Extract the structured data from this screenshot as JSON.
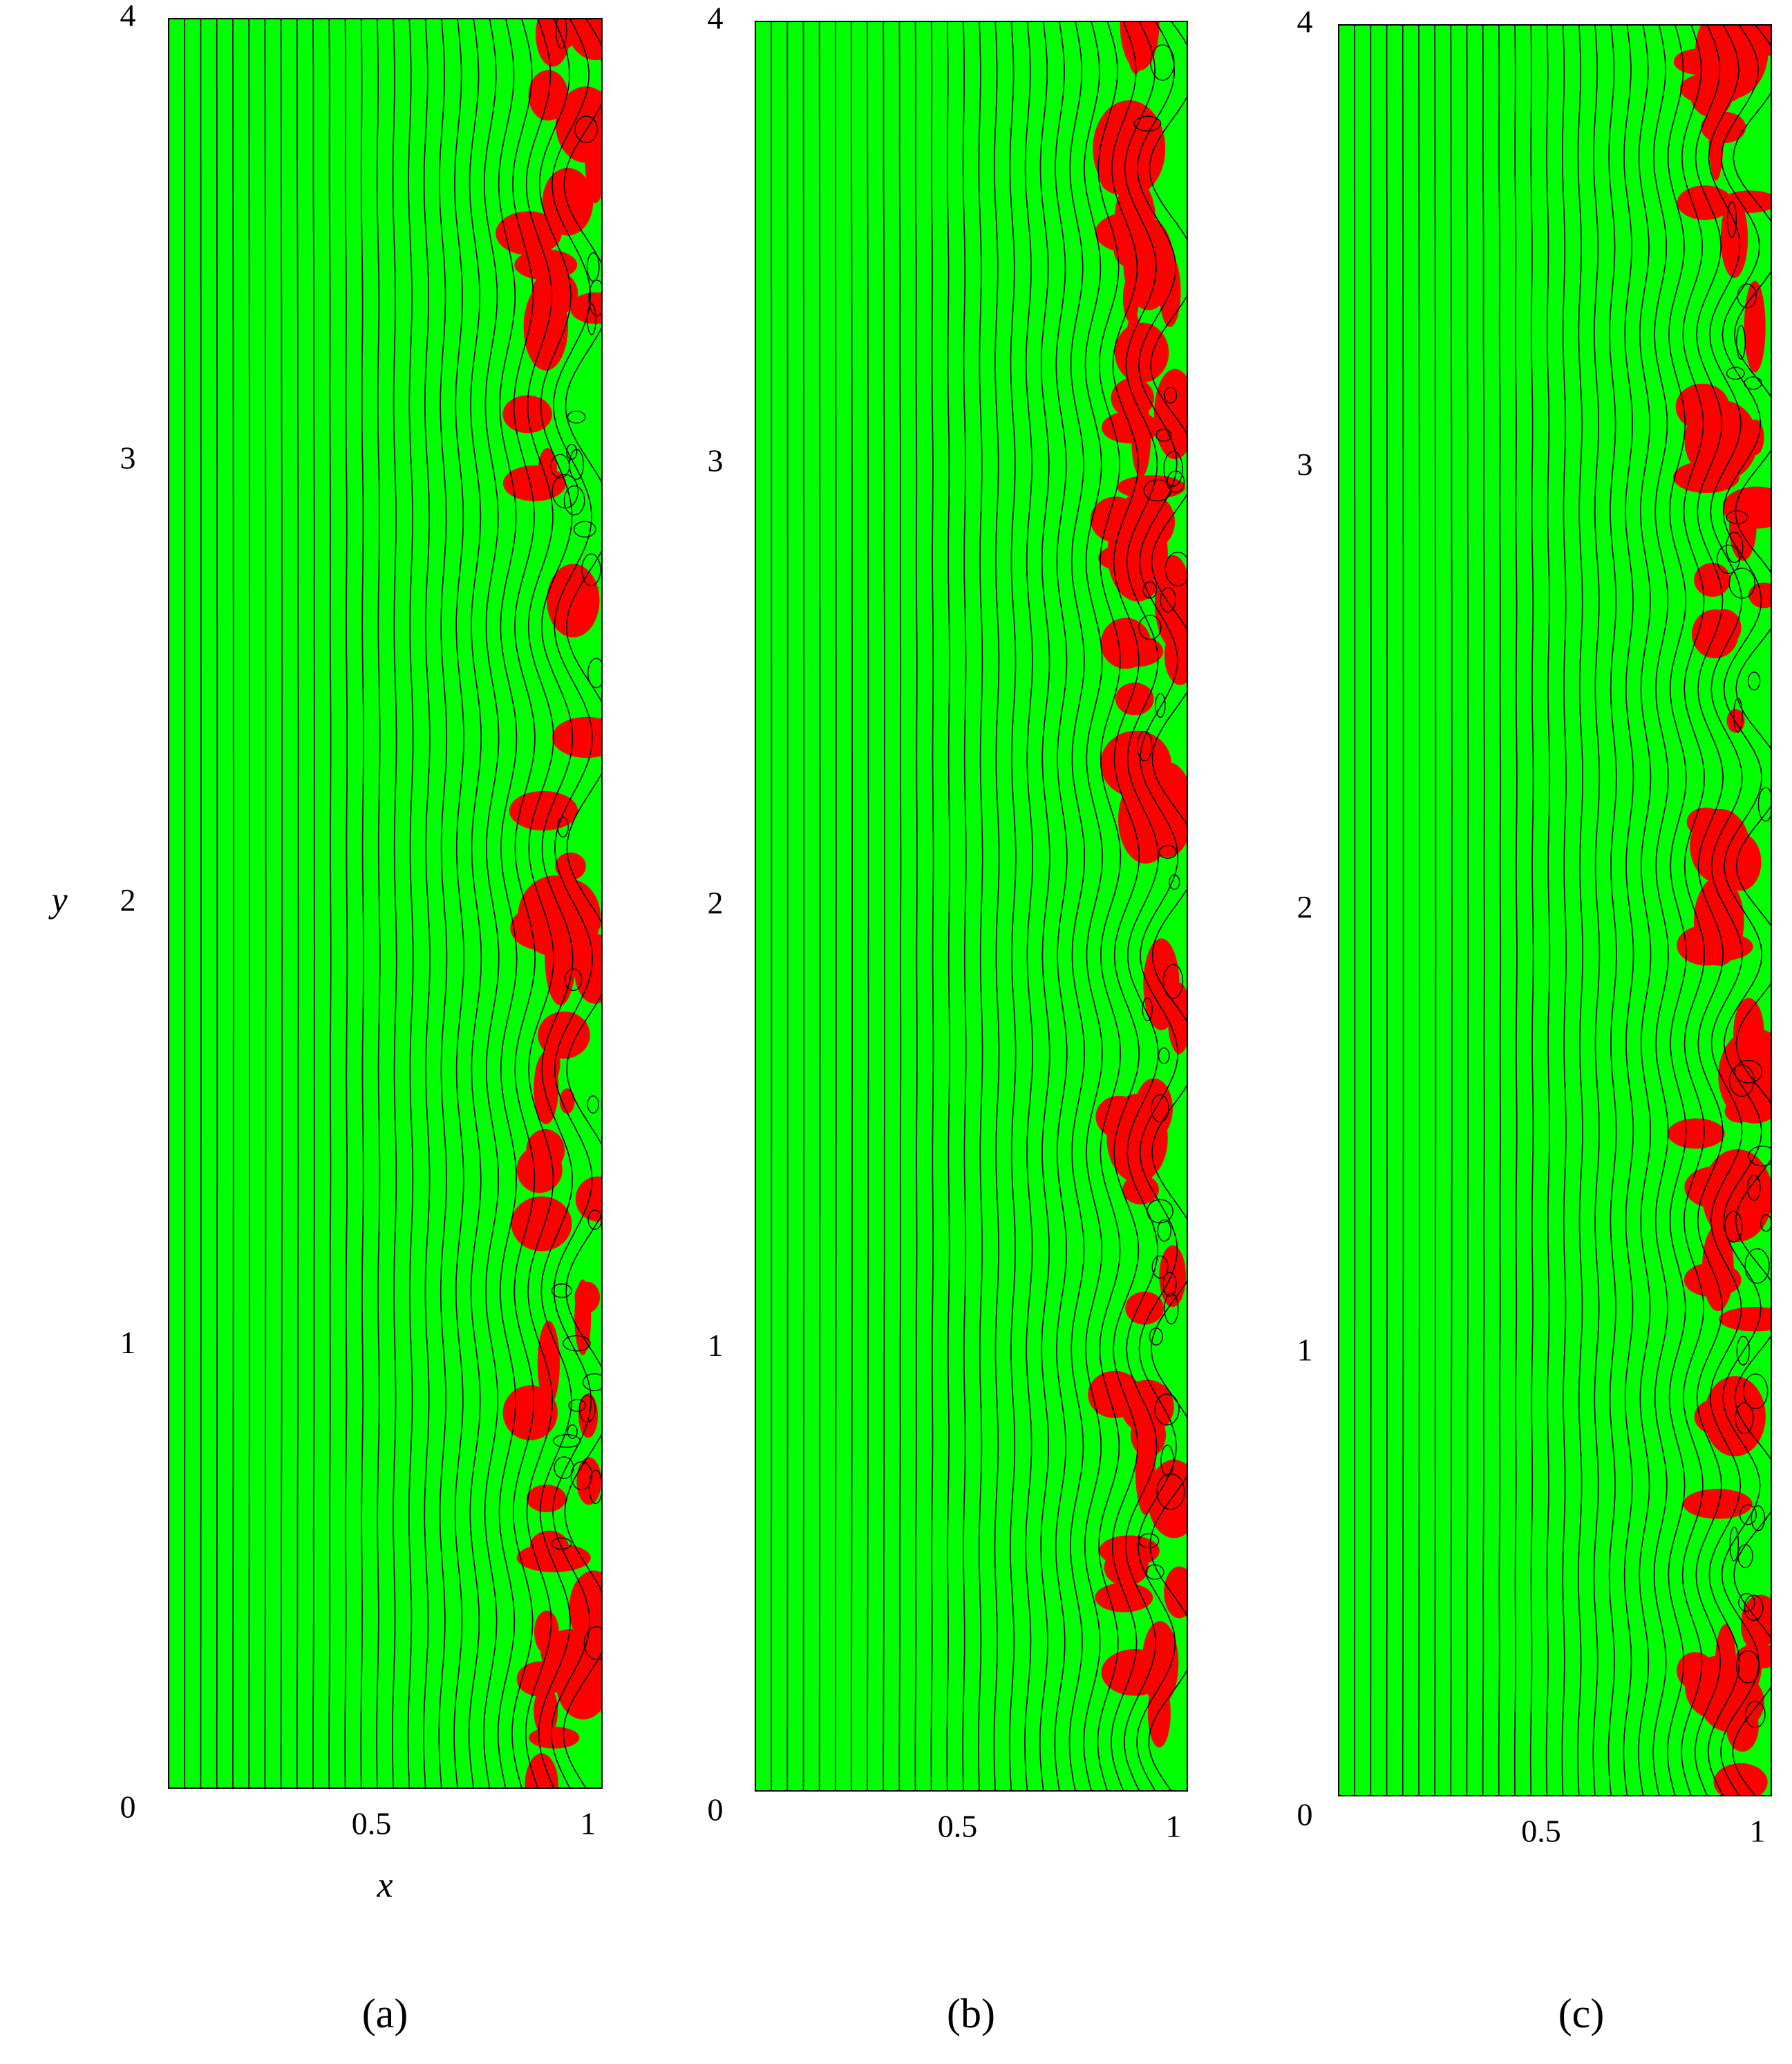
{
  "chart_data": [
    {
      "type": "contour",
      "label": "(a)",
      "xlabel": "x",
      "ylabel": "y",
      "xlim": [
        0,
        1
      ],
      "ylim": [
        0,
        4
      ],
      "xticks": [
        0.5,
        1
      ],
      "yticks": [
        0,
        1,
        2,
        3,
        4
      ]
    },
    {
      "type": "contour",
      "label": "(b)",
      "xlim": [
        0,
        1
      ],
      "ylim": [
        0,
        4
      ],
      "xticks": [
        0.5,
        1
      ],
      "yticks": [
        0,
        1,
        2,
        3,
        4
      ]
    },
    {
      "type": "contour",
      "label": "(c)",
      "xlim": [
        0,
        1
      ],
      "ylim": [
        0,
        4
      ],
      "xticks": [
        0.5,
        1
      ],
      "yticks": [
        0,
        1,
        2,
        3,
        4
      ]
    }
  ]
}
